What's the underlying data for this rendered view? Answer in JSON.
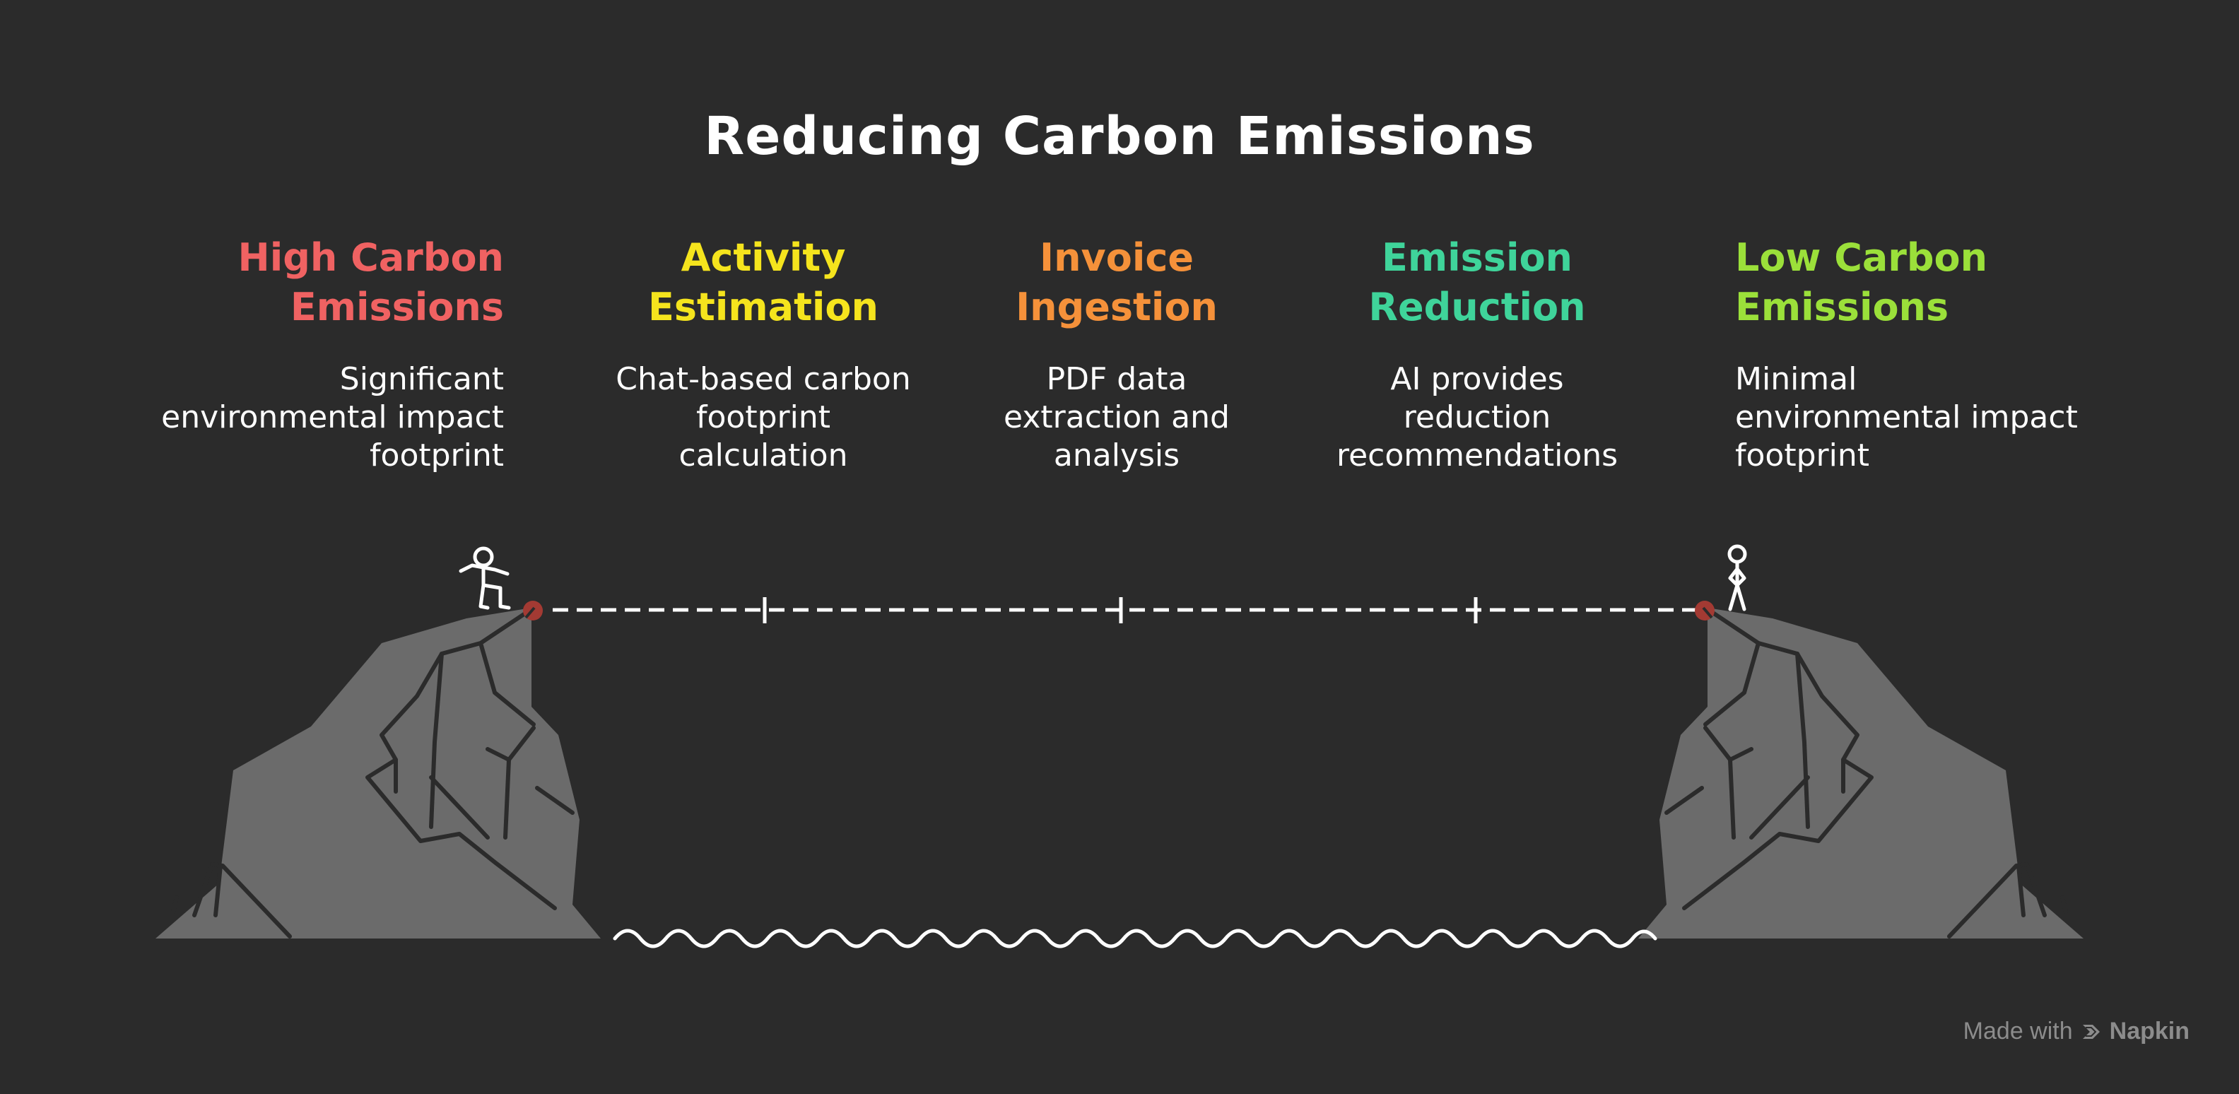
{
  "title": "Reducing Carbon Emissions",
  "stages": [
    {
      "title_line1": "High Carbon",
      "title_line2": "Emissions",
      "desc_lines": [
        "Significant",
        "environmental impact",
        "footprint"
      ],
      "color": "#f06262"
    },
    {
      "title_line1": "Activity",
      "title_line2": "Estimation",
      "desc_lines": [
        "Chat-based carbon",
        "footprint",
        "calculation"
      ],
      "color": "#f5e41d"
    },
    {
      "title_line1": "Invoice",
      "title_line2": "Ingestion",
      "desc_lines": [
        "PDF data",
        "extraction and",
        "analysis"
      ],
      "color": "#f5913a"
    },
    {
      "title_line1": "Emission",
      "title_line2": "Reduction",
      "desc_lines": [
        "AI provides",
        "reduction",
        "recommendations"
      ],
      "color": "#3fd49a"
    },
    {
      "title_line1": "Low Carbon",
      "title_line2": "Emissions",
      "desc_lines": [
        "Minimal",
        "environmental impact",
        "footprint"
      ],
      "color": "#9be03a"
    }
  ],
  "watermark": {
    "prefix": "Made with",
    "brand": "Napkin"
  },
  "icons": {
    "left_figure": "stick-figure-icon",
    "right_figure": "stick-figure-icon",
    "left_cliff": "cliff-icon",
    "right_cliff": "cliff-icon",
    "water": "wave-icon",
    "watermark_logo": "napkin-logo-icon"
  }
}
